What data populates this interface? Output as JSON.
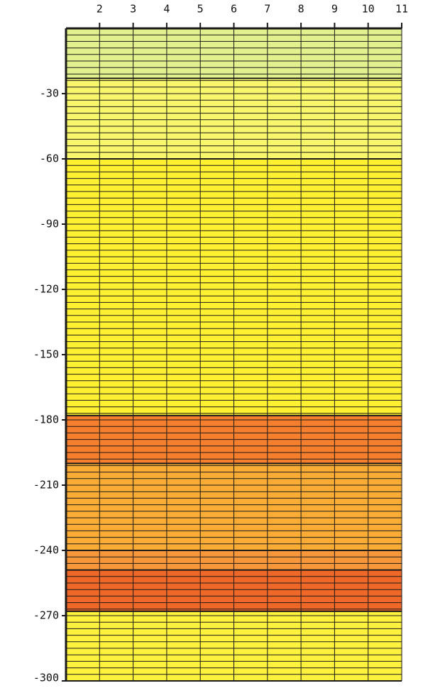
{
  "chart_data": {
    "type": "depth-bands",
    "xlim": [
      1,
      11
    ],
    "xticks": [
      2,
      3,
      4,
      5,
      6,
      7,
      8,
      9,
      10,
      11
    ],
    "ylim": [
      -300,
      0
    ],
    "yticks": [
      -30,
      -60,
      -90,
      -120,
      -150,
      -180,
      -210,
      -240,
      -270,
      -300
    ],
    "bands": [
      {
        "from": 0,
        "to": -23,
        "color": "#e2f08e"
      },
      {
        "from": -23,
        "to": -60,
        "color": "#f8f66a"
      },
      {
        "from": -60,
        "to": -178,
        "color": "#fff032"
      },
      {
        "from": -178,
        "to": -200,
        "color": "#f57f2c"
      },
      {
        "from": -200,
        "to": -240,
        "color": "#fbac34"
      },
      {
        "from": -240,
        "to": -249,
        "color": "#f8963a"
      },
      {
        "from": -249,
        "to": -268,
        "color": "#f06828"
      },
      {
        "from": -268,
        "to": -300,
        "color": "#fff23e"
      }
    ],
    "grid": true,
    "grid_y_step": 3,
    "line_color": "#1a1a1a"
  }
}
